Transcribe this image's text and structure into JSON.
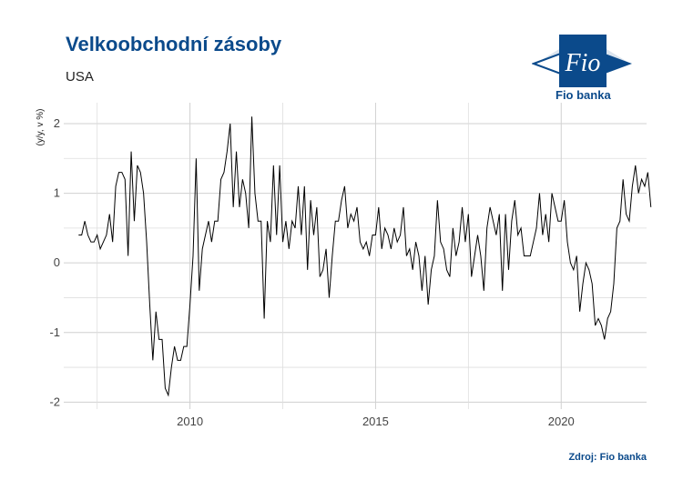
{
  "header": {
    "title": "Velkoobchodní zásoby",
    "subtitle": "USA"
  },
  "logo": {
    "mark_text": "Fio",
    "name": "Fio banka",
    "colors": {
      "primary": "#0b4a8b",
      "light": "#ffffff"
    }
  },
  "footer": {
    "source": "Zdroj: Fio banka"
  },
  "chart_data": {
    "type": "line",
    "title": "Velkoobchodní zásoby",
    "subtitle": "USA",
    "xlabel": "",
    "ylabel": "(y/y, v %)",
    "x_ticks": [
      2010,
      2015,
      2020
    ],
    "y_ticks": [
      -2,
      -1,
      0,
      1,
      2
    ],
    "xlim": [
      2006.6,
      2022.3
    ],
    "ylim": [
      -2.1,
      2.3
    ],
    "grid": true,
    "line_color": "#000000",
    "series": [
      {
        "x_start": "2007-01",
        "frequency": "monthly",
        "values": [
          0.4,
          0.4,
          0.6,
          0.4,
          0.3,
          0.3,
          0.4,
          0.2,
          0.3,
          0.4,
          0.7,
          0.3,
          1.1,
          1.3,
          1.3,
          1.2,
          0.1,
          1.6,
          0.6,
          1.4,
          1.3,
          1.0,
          0.3,
          -0.6,
          -1.4,
          -0.7,
          -1.1,
          -1.1,
          -1.8,
          -1.9,
          -1.5,
          -1.2,
          -1.4,
          -1.4,
          -1.2,
          -1.2,
          -0.6,
          0.1,
          1.5,
          -0.4,
          0.2,
          0.4,
          0.6,
          0.3,
          0.6,
          0.6,
          1.2,
          1.3,
          1.6,
          2.0,
          0.8,
          1.6,
          0.8,
          1.2,
          1.0,
          0.5,
          2.1,
          1.0,
          0.6,
          0.6,
          -0.8,
          0.6,
          0.3,
          1.4,
          0.4,
          1.4,
          0.3,
          0.6,
          0.2,
          0.6,
          0.5,
          1.1,
          0.4,
          1.1,
          -0.1,
          0.9,
          0.4,
          0.8,
          -0.2,
          -0.1,
          0.2,
          -0.5,
          0.1,
          0.6,
          0.6,
          0.9,
          1.1,
          0.5,
          0.7,
          0.6,
          0.8,
          0.3,
          0.2,
          0.3,
          0.1,
          0.4,
          0.4,
          0.8,
          0.2,
          0.5,
          0.4,
          0.2,
          0.5,
          0.3,
          0.4,
          0.8,
          0.1,
          0.2,
          -0.1,
          0.3,
          0.1,
          -0.4,
          0.1,
          -0.6,
          -0.1,
          0.1,
          0.9,
          0.3,
          0.2,
          -0.1,
          -0.2,
          0.5,
          0.1,
          0.3,
          0.8,
          0.3,
          0.7,
          -0.2,
          0.1,
          0.4,
          0.1,
          -0.4,
          0.5,
          0.8,
          0.6,
          0.4,
          0.7,
          -0.4,
          0.7,
          -0.1,
          0.6,
          0.9,
          0.4,
          0.5,
          0.1,
          0.1,
          0.1,
          0.3,
          0.5,
          1.0,
          0.4,
          0.7,
          0.3,
          1.0,
          0.8,
          0.6,
          0.6,
          0.9,
          0.3,
          0.0,
          -0.1,
          0.1,
          -0.7,
          -0.3,
          0.0,
          -0.1,
          -0.3,
          -0.9,
          -0.8,
          -0.9,
          -1.1,
          -0.8,
          -0.7,
          -0.3,
          0.5,
          0.6,
          1.2,
          0.7,
          0.6,
          1.1,
          1.4,
          1.0,
          1.2,
          1.1,
          1.3,
          0.8
        ]
      }
    ]
  }
}
